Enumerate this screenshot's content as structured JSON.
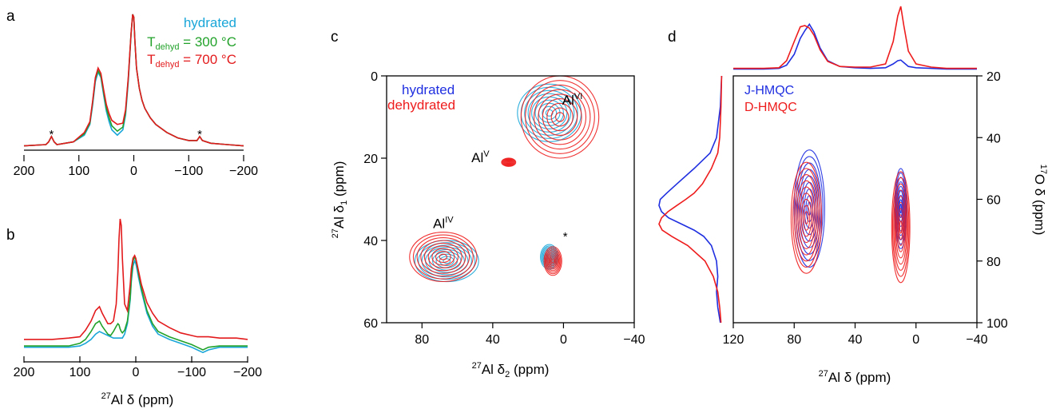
{
  "panel_labels": [
    "a",
    "b",
    "c",
    "d"
  ],
  "colors": {
    "hydrated": "#1aa6d8",
    "t300": "#22a22a",
    "t700": "#e31a1c",
    "blue": "#1f2fe0",
    "red": "#ee1c1c",
    "magenta": "#ee22ee"
  },
  "chart_data": [
    {
      "panel": "a",
      "type": "line",
      "xlabel": "",
      "xlim": [
        200,
        -200
      ],
      "xticks": [
        "200",
        "100",
        "0",
        "−100",
        "−200"
      ],
      "xtick_values": [
        200,
        100,
        0,
        -100,
        -200
      ],
      "legend": {
        "hydrated": "hydrated",
        "t300_prefix": "T",
        "t300_sub": "dehyd",
        "t300_suffix": " = 300 °C",
        "t700_prefix": "T",
        "t700_sub": "dehyd",
        "t700_suffix": " = 700 °C"
      },
      "annotations": [
        "*",
        "*"
      ],
      "annotation_positions_ppm": [
        150,
        -120
      ],
      "x": [
        200,
        160,
        155,
        150,
        145,
        140,
        110,
        90,
        80,
        75,
        70,
        65,
        60,
        55,
        50,
        45,
        40,
        30,
        20,
        15,
        10,
        5,
        2,
        0,
        -2,
        -5,
        -10,
        -15,
        -20,
        -30,
        -40,
        -60,
        -80,
        -100,
        -115,
        -120,
        -125,
        -140,
        -170,
        -200
      ],
      "series": [
        {
          "key": "hydrated",
          "values": [
            0.02,
            0.03,
            0.05,
            0.09,
            0.05,
            0.03,
            0.05,
            0.1,
            0.18,
            0.32,
            0.5,
            0.57,
            0.53,
            0.4,
            0.28,
            0.2,
            0.14,
            0.1,
            0.14,
            0.25,
            0.5,
            0.85,
            1.0,
            0.98,
            0.8,
            0.6,
            0.45,
            0.36,
            0.3,
            0.23,
            0.18,
            0.12,
            0.08,
            0.06,
            0.06,
            0.09,
            0.06,
            0.04,
            0.03,
            0.02
          ]
        },
        {
          "key": "t300",
          "values": [
            0.02,
            0.03,
            0.05,
            0.09,
            0.05,
            0.03,
            0.05,
            0.11,
            0.19,
            0.34,
            0.52,
            0.58,
            0.54,
            0.42,
            0.3,
            0.23,
            0.17,
            0.13,
            0.16,
            0.27,
            0.52,
            0.86,
            1.0,
            0.98,
            0.8,
            0.6,
            0.45,
            0.36,
            0.3,
            0.23,
            0.18,
            0.12,
            0.08,
            0.06,
            0.06,
            0.09,
            0.06,
            0.04,
            0.03,
            0.02
          ]
        },
        {
          "key": "t700",
          "values": [
            0.02,
            0.03,
            0.05,
            0.09,
            0.05,
            0.03,
            0.05,
            0.12,
            0.2,
            0.35,
            0.53,
            0.6,
            0.56,
            0.44,
            0.33,
            0.26,
            0.21,
            0.18,
            0.19,
            0.29,
            0.53,
            0.86,
            1.0,
            0.98,
            0.8,
            0.6,
            0.45,
            0.36,
            0.3,
            0.23,
            0.18,
            0.12,
            0.08,
            0.06,
            0.06,
            0.09,
            0.06,
            0.04,
            0.03,
            0.02
          ]
        }
      ]
    },
    {
      "panel": "b",
      "type": "line",
      "xlabel_prefix": "27",
      "xlabel": "Al δ (ppm)",
      "xlim": [
        200,
        -200
      ],
      "xticks": [
        "200",
        "100",
        "0",
        "−100",
        "−200"
      ],
      "xtick_values": [
        200,
        100,
        0,
        -100,
        -200
      ],
      "x": [
        200,
        150,
        120,
        100,
        90,
        80,
        72,
        65,
        60,
        50,
        45,
        40,
        35,
        32,
        30,
        28,
        26,
        24,
        20,
        15,
        10,
        8,
        5,
        2,
        0,
        -2,
        -5,
        -10,
        -20,
        -30,
        -40,
        -60,
        -80,
        -100,
        -110,
        -120,
        -130,
        -150,
        -180,
        -200
      ],
      "series": [
        {
          "key": "hydrated",
          "values": [
            0.02,
            0.02,
            0.02,
            0.03,
            0.05,
            0.08,
            0.12,
            0.14,
            0.13,
            0.11,
            0.1,
            0.09,
            0.09,
            0.09,
            0.09,
            0.09,
            0.09,
            0.09,
            0.12,
            0.2,
            0.38,
            0.52,
            0.64,
            0.68,
            0.66,
            0.62,
            0.55,
            0.45,
            0.28,
            0.18,
            0.12,
            0.08,
            0.05,
            0.02,
            0.0,
            -0.02,
            0.0,
            0.02,
            0.02,
            0.02
          ]
        },
        {
          "key": "t300",
          "values": [
            0.03,
            0.03,
            0.03,
            0.05,
            0.08,
            0.14,
            0.2,
            0.22,
            0.18,
            0.12,
            0.11,
            0.14,
            0.18,
            0.2,
            0.19,
            0.16,
            0.14,
            0.13,
            0.15,
            0.22,
            0.4,
            0.55,
            0.68,
            0.71,
            0.69,
            0.65,
            0.58,
            0.47,
            0.3,
            0.2,
            0.14,
            0.1,
            0.07,
            0.04,
            0.02,
            0.0,
            0.02,
            0.03,
            0.03,
            0.03
          ]
        },
        {
          "key": "t700",
          "values": [
            0.08,
            0.08,
            0.09,
            0.1,
            0.15,
            0.22,
            0.3,
            0.33,
            0.28,
            0.2,
            0.2,
            0.22,
            0.35,
            0.6,
            0.85,
            1.0,
            0.95,
            0.7,
            0.35,
            0.3,
            0.5,
            0.62,
            0.7,
            0.72,
            0.7,
            0.66,
            0.6,
            0.5,
            0.36,
            0.28,
            0.22,
            0.17,
            0.13,
            0.11,
            0.1,
            0.1,
            0.1,
            0.09,
            0.09,
            0.08
          ]
        }
      ]
    },
    {
      "panel": "c",
      "type": "scatter",
      "xlabel_prefix": "27",
      "xlabel_main": "Al δ",
      "xlabel_sub": "2",
      "xlabel_suffix": " (ppm)",
      "ylabel_prefix": "27",
      "ylabel_main": "Al δ",
      "ylabel_sub": "1",
      "ylabel_suffix": " (ppm)",
      "xlim": [
        100,
        -40
      ],
      "ylim": [
        0,
        60
      ],
      "xticks": [
        "80",
        "40",
        "0",
        "−40"
      ],
      "xtick_values": [
        80,
        40,
        0,
        -40
      ],
      "yticks": [
        "0",
        "20",
        "40",
        "60"
      ],
      "ytick_values": [
        0,
        20,
        40,
        60
      ],
      "legend": [
        "hydrated",
        "dehydrated"
      ],
      "peak_labels": [
        {
          "base": "Al",
          "sup": "VI",
          "x": -5,
          "y": 7
        },
        {
          "base": "Al",
          "sup": "V",
          "x": 47,
          "y": 21
        },
        {
          "base": "Al",
          "sup": "IV",
          "x": 68,
          "y": 37
        }
      ],
      "star": {
        "text": "*",
        "x": -1,
        "y": 40
      },
      "peaks": [
        {
          "series": "hydrated",
          "x": 8,
          "y": 9,
          "rx": 18,
          "ry": 7
        },
        {
          "series": "dehydrated",
          "x": 2,
          "y": 10,
          "rx": 22,
          "ry": 10
        },
        {
          "series": "hydrated",
          "x": 66,
          "y": 45,
          "rx": 18,
          "ry": 5
        },
        {
          "series": "dehydrated",
          "x": 68,
          "y": 44,
          "rx": 19,
          "ry": 6
        },
        {
          "series": "dehydrated",
          "x": 31,
          "y": 21,
          "rx": 4,
          "ry": 1
        },
        {
          "series": "hydrated",
          "x": 8,
          "y": 44,
          "rx": 5,
          "ry": 3
        },
        {
          "series": "dehydrated",
          "x": 6,
          "y": 45,
          "rx": 5,
          "ry": 3.5
        }
      ]
    },
    {
      "panel": "d",
      "type": "scatter",
      "xlabel_prefix": "27",
      "xlabel": "Al δ (ppm)",
      "ylabel_prefix": "17",
      "ylabel": "O δ (ppm)",
      "xlim": [
        120,
        -40
      ],
      "ylim": [
        20,
        100
      ],
      "xticks": [
        "120",
        "80",
        "40",
        "0",
        "−40"
      ],
      "xtick_values": [
        120,
        80,
        40,
        0,
        -40
      ],
      "yticks": [
        "20",
        "40",
        "60",
        "80",
        "100"
      ],
      "ytick_values": [
        20,
        40,
        60,
        80,
        100
      ],
      "legend": [
        "J-HMQC",
        "D-HMQC"
      ],
      "peaks": [
        {
          "series": "J-HMQC",
          "x": 70,
          "y": 63,
          "rx": 10,
          "ry": 19
        },
        {
          "series": "D-HMQC",
          "x": 72,
          "y": 66,
          "rx": 10,
          "ry": 18
        },
        {
          "series": "J-HMQC",
          "x": 10,
          "y": 63,
          "rx": 4,
          "ry": 13
        },
        {
          "series": "D-HMQC",
          "x": 10,
          "y": 69,
          "rx": 6,
          "ry": 18
        }
      ],
      "top_projection": {
        "x": [
          120,
          100,
          90,
          85,
          80,
          76,
          73,
          70,
          67,
          63,
          58,
          50,
          40,
          30,
          20,
          15,
          12,
          10,
          8,
          5,
          0,
          -10,
          -20,
          -40
        ],
        "series": [
          {
            "key": "J-HMQC",
            "values": [
              0.02,
              0.02,
              0.03,
              0.08,
              0.25,
              0.5,
              0.62,
              0.72,
              0.6,
              0.35,
              0.15,
              0.06,
              0.04,
              0.03,
              0.04,
              0.1,
              0.15,
              0.16,
              0.12,
              0.06,
              0.04,
              0.03,
              0.02,
              0.02
            ]
          },
          {
            "key": "D-HMQC",
            "values": [
              0.03,
              0.03,
              0.04,
              0.15,
              0.45,
              0.68,
              0.7,
              0.66,
              0.55,
              0.32,
              0.14,
              0.06,
              0.05,
              0.05,
              0.1,
              0.45,
              0.85,
              1.0,
              0.7,
              0.3,
              0.1,
              0.05,
              0.03,
              0.03
            ]
          }
        ]
      },
      "side_projection": {
        "y": [
          20,
          30,
          40,
          45,
          50,
          55,
          58,
          60,
          62,
          64,
          66,
          68,
          70,
          72,
          75,
          80,
          85,
          90,
          95,
          100
        ],
        "series": [
          {
            "key": "J-HMQC",
            "values": [
              0.02,
              0.04,
              0.1,
              0.2,
              0.45,
              0.72,
              0.88,
              0.98,
              1.0,
              0.96,
              0.85,
              0.65,
              0.45,
              0.3,
              0.18,
              0.1,
              0.08,
              0.1,
              0.08,
              0.04
            ]
          },
          {
            "key": "D-HMQC",
            "values": [
              0.02,
              0.03,
              0.05,
              0.08,
              0.18,
              0.32,
              0.45,
              0.58,
              0.72,
              0.86,
              0.96,
              1.0,
              0.95,
              0.8,
              0.55,
              0.28,
              0.15,
              0.08,
              0.05,
              0.03
            ]
          }
        ]
      }
    }
  ]
}
